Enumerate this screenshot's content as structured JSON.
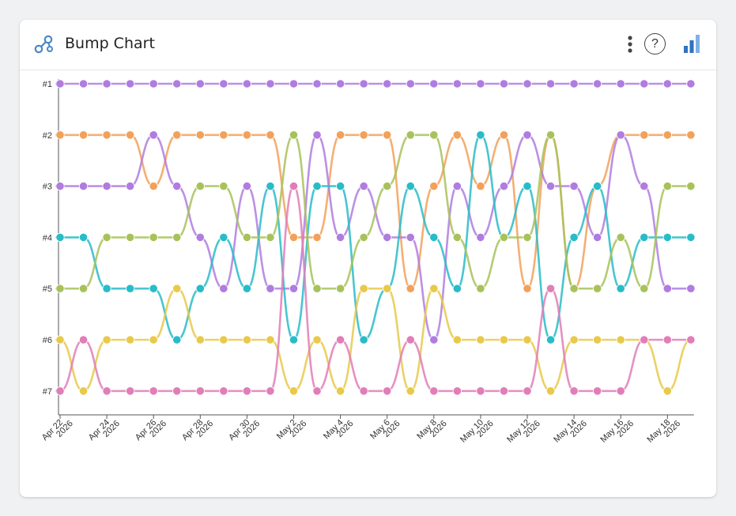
{
  "header": {
    "title": "Bump Chart",
    "menu_icon": "kebab-menu-icon",
    "help_label": "?",
    "chart_type_icon": "bar-chart-icon",
    "logo_icon": "network-nodes-icon"
  },
  "chart_data": {
    "type": "bump",
    "title": "",
    "xlabel": "",
    "ylabel": "",
    "grid": false,
    "legend": "none",
    "rank_labels": [
      "#1",
      "#2",
      "#3",
      "#4",
      "#5",
      "#6",
      "#7"
    ],
    "ylim": [
      1,
      7
    ],
    "x": [
      "2026-04-22",
      "2026-04-23",
      "2026-04-24",
      "2026-04-25",
      "2026-04-26",
      "2026-04-27",
      "2026-04-28",
      "2026-04-29",
      "2026-04-30",
      "2026-05-01",
      "2026-05-02",
      "2026-05-03",
      "2026-05-04",
      "2026-05-05",
      "2026-05-06",
      "2026-05-07",
      "2026-05-08",
      "2026-05-09",
      "2026-05-10",
      "2026-05-11",
      "2026-05-12",
      "2026-05-13",
      "2026-05-14",
      "2026-05-15",
      "2026-05-16",
      "2026-05-17",
      "2026-05-18",
      "2026-05-19"
    ],
    "x_tick_labels": [
      [
        "Apr 22",
        "2026"
      ],
      [
        "Apr 24",
        "2026"
      ],
      [
        "Apr 26",
        "2026"
      ],
      [
        "Apr 28",
        "2026"
      ],
      [
        "Apr 30",
        "2026"
      ],
      [
        "May 2",
        "2026"
      ],
      [
        "May 4",
        "2026"
      ],
      [
        "May 6",
        "2026"
      ],
      [
        "May 8",
        "2026"
      ],
      [
        "May 10",
        "2026"
      ],
      [
        "May 12",
        "2026"
      ],
      [
        "May 14",
        "2026"
      ],
      [
        "May 16",
        "2026"
      ],
      [
        "May 18",
        "2026"
      ]
    ],
    "series": [
      {
        "color": "#b07ce0",
        "ranks": [
          1,
          1,
          1,
          1,
          1,
          1,
          1,
          1,
          1,
          1,
          1,
          1,
          1,
          1,
          1,
          1,
          1,
          1,
          1,
          1,
          1,
          1,
          1,
          1,
          1,
          1,
          1,
          1
        ]
      },
      {
        "color": "#f2a15a",
        "ranks": [
          2,
          2,
          2,
          2,
          3,
          2,
          2,
          2,
          2,
          2,
          4,
          4,
          2,
          2,
          2,
          5,
          3,
          2,
          3,
          2,
          5,
          2,
          5,
          3,
          2,
          2,
          2,
          2
        ]
      },
      {
        "color": "#b07ce0",
        "ranks": [
          3,
          3,
          3,
          3,
          2,
          3,
          4,
          5,
          3,
          5,
          5,
          2,
          4,
          3,
          4,
          4,
          6,
          3,
          4,
          3,
          2,
          3,
          3,
          4,
          2,
          3,
          5,
          5
        ]
      },
      {
        "color": "#28bcc8",
        "ranks": [
          4,
          4,
          5,
          5,
          5,
          6,
          5,
          4,
          5,
          3,
          6,
          3,
          3,
          6,
          5,
          3,
          4,
          5,
          2,
          4,
          3,
          6,
          4,
          3,
          5,
          4,
          4,
          4
        ]
      },
      {
        "color": "#a8c25a",
        "ranks": [
          5,
          5,
          4,
          4,
          4,
          4,
          3,
          3,
          4,
          4,
          2,
          5,
          5,
          4,
          3,
          2,
          2,
          4,
          5,
          4,
          4,
          2,
          5,
          5,
          4,
          5,
          3,
          3
        ]
      },
      {
        "color": "#e8c94a",
        "ranks": [
          6,
          7,
          6,
          6,
          6,
          5,
          6,
          6,
          6,
          6,
          7,
          6,
          7,
          5,
          5,
          7,
          5,
          6,
          6,
          6,
          6,
          7,
          6,
          6,
          6,
          6,
          7,
          6
        ]
      },
      {
        "color": "#e07eb7",
        "ranks": [
          7,
          6,
          7,
          7,
          7,
          7,
          7,
          7,
          7,
          7,
          3,
          7,
          6,
          7,
          7,
          6,
          7,
          7,
          7,
          7,
          7,
          5,
          7,
          7,
          7,
          6,
          6,
          6
        ]
      }
    ]
  }
}
